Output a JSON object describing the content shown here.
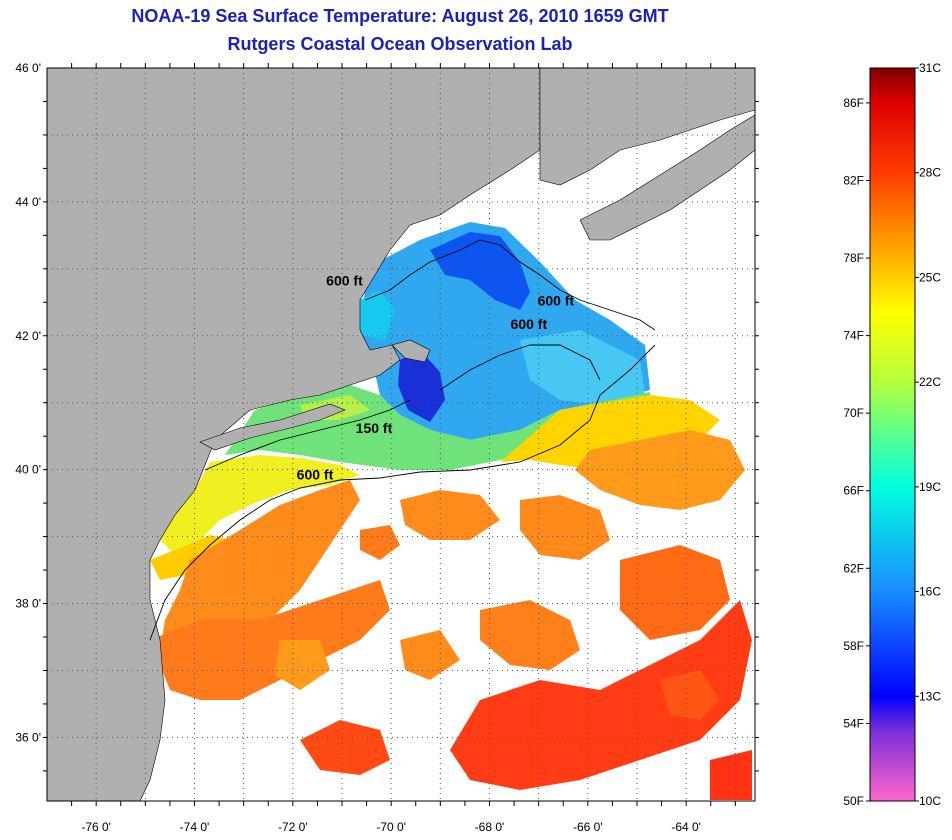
{
  "title": "NOAA-19 Sea Surface Temperature:  August 26, 2010 1659 GMT",
  "subtitle": "Rutgers Coastal Ocean Observation Lab",
  "map": {
    "lat_labels": [
      {
        "value": 46,
        "text": "46 0'"
      },
      {
        "value": 44,
        "text": "44 0'"
      },
      {
        "value": 42,
        "text": "42 0'"
      },
      {
        "value": 40,
        "text": "40 0'"
      },
      {
        "value": 38,
        "text": "38 0'"
      },
      {
        "value": 36,
        "text": "36 0'"
      }
    ],
    "lon_labels": [
      {
        "value": -76,
        "text": "-76 0'"
      },
      {
        "value": -74,
        "text": "-74 0'"
      },
      {
        "value": -72,
        "text": "-72 0'"
      },
      {
        "value": -70,
        "text": "-70 0'"
      },
      {
        "value": -68,
        "text": "-68 0'"
      },
      {
        "value": -66,
        "text": "-66 0'"
      },
      {
        "value": -64,
        "text": "-64 0'"
      }
    ],
    "extent": {
      "lon_min": -77.0,
      "lon_max": -62.6,
      "lat_min": 35.05,
      "lat_max": 46.0
    },
    "grid": "dotted",
    "land_color": "#b0b0b0",
    "cloud_color": "#ffffff",
    "contour_labels": [
      {
        "text": "600 ft",
        "lon": -70.95,
        "lat": 42.75
      },
      {
        "text": "600 ft",
        "lon": -66.65,
        "lat": 42.45
      },
      {
        "text": "600 ft",
        "lon": -67.2,
        "lat": 42.1
      },
      {
        "text": "150 ft",
        "lon": -70.35,
        "lat": 40.55
      },
      {
        "text": "600 ft",
        "lon": -71.55,
        "lat": 39.85
      }
    ]
  },
  "colorbar": {
    "min_c": 10,
    "max_c": 31,
    "f_labels": [
      {
        "value_f": 86,
        "text": "86F"
      },
      {
        "value_f": 82,
        "text": "82F"
      },
      {
        "value_f": 78,
        "text": "78F"
      },
      {
        "value_f": 74,
        "text": "74F"
      },
      {
        "value_f": 70,
        "text": "70F"
      },
      {
        "value_f": 66,
        "text": "66F"
      },
      {
        "value_f": 62,
        "text": "62F"
      },
      {
        "value_f": 58,
        "text": "58F"
      },
      {
        "value_f": 54,
        "text": "54F"
      },
      {
        "value_f": 50,
        "text": "50F"
      }
    ],
    "c_labels": [
      {
        "value_c": 31,
        "text": "31C"
      },
      {
        "value_c": 28,
        "text": "28C"
      },
      {
        "value_c": 25,
        "text": "25C"
      },
      {
        "value_c": 22,
        "text": "22C"
      },
      {
        "value_c": 19,
        "text": "19C"
      },
      {
        "value_c": 16,
        "text": "16C"
      },
      {
        "value_c": 13,
        "text": "13C"
      },
      {
        "value_c": 10,
        "text": "10C"
      }
    ],
    "stops": [
      {
        "c": 10,
        "color": "#ff66cc"
      },
      {
        "c": 12,
        "color": "#7a2fd8"
      },
      {
        "c": 13,
        "color": "#0000ff"
      },
      {
        "c": 16,
        "color": "#1a8cff"
      },
      {
        "c": 19,
        "color": "#00ffe0"
      },
      {
        "c": 22,
        "color": "#b4ff3c"
      },
      {
        "c": 24,
        "color": "#ffff00"
      },
      {
        "c": 25.5,
        "color": "#ffb400"
      },
      {
        "c": 28,
        "color": "#ff3c00"
      },
      {
        "c": 30,
        "color": "#dd0000"
      },
      {
        "c": 31,
        "color": "#800000"
      }
    ]
  }
}
